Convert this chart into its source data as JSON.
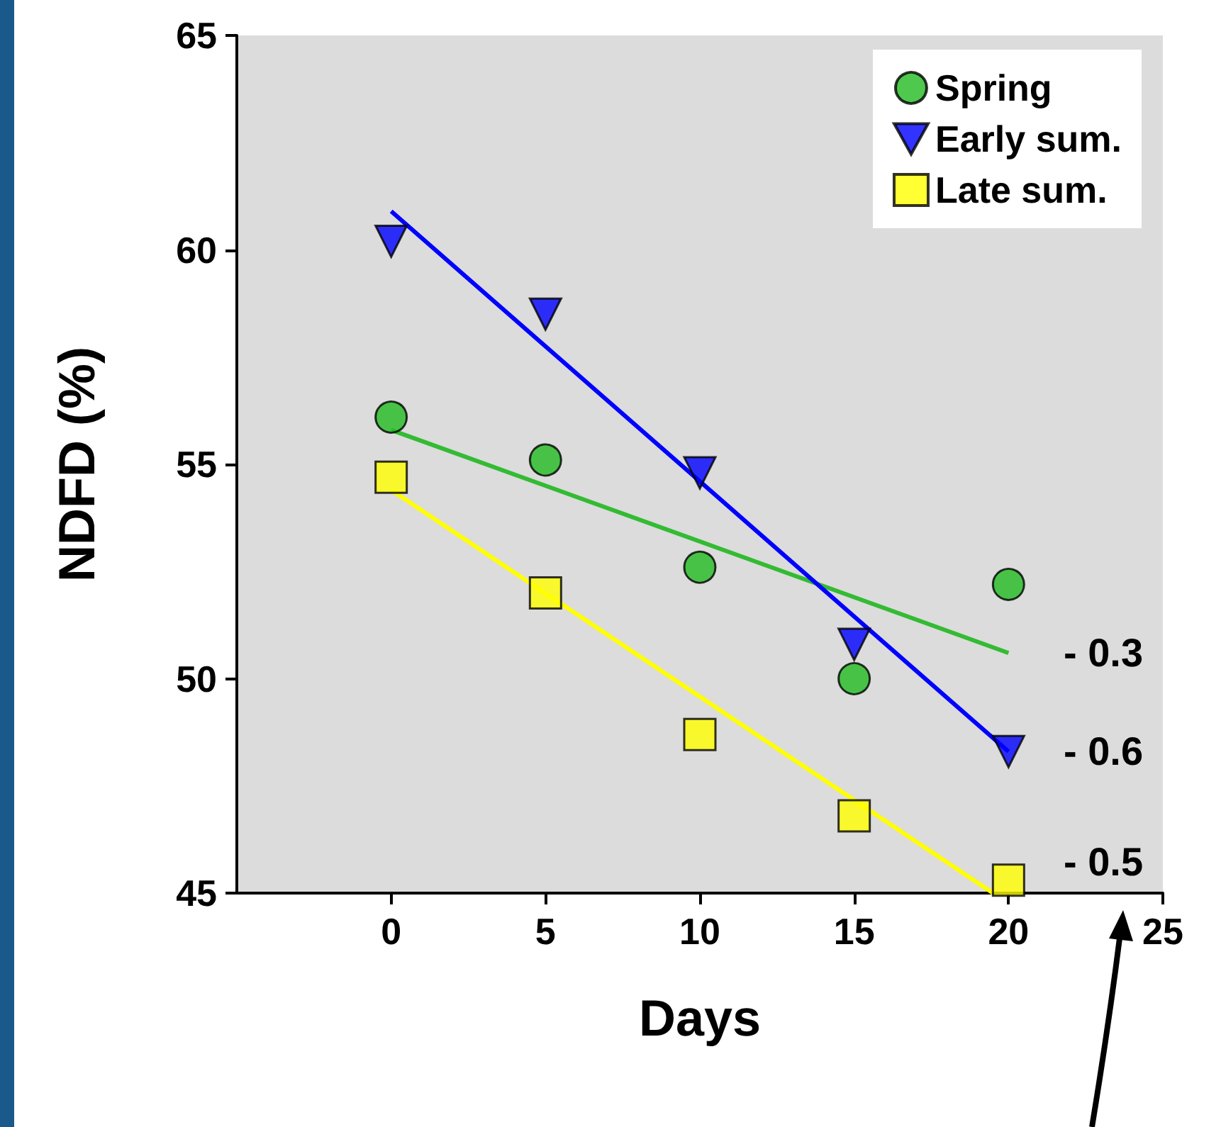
{
  "chart_data": {
    "type": "scatter",
    "xlabel": "Days",
    "ylabel": "NDFD (%)",
    "xlim": [
      -5,
      25
    ],
    "xticks": [
      0,
      5,
      10,
      15,
      20,
      25
    ],
    "ylim": [
      45,
      65
    ],
    "yticks": [
      45,
      50,
      55,
      60,
      65
    ],
    "grid": false,
    "legend": "top right",
    "series": [
      {
        "name": "Spring",
        "color": "#22bb22",
        "marker": "circle",
        "x": [
          0,
          5,
          10,
          15,
          20
        ],
        "values": [
          56.1,
          55.1,
          52.6,
          50.0,
          52.2
        ]
      },
      {
        "name": "Early sum.",
        "color": "#0000ff",
        "marker": "triangle",
        "x": [
          0,
          5,
          10,
          15,
          20
        ],
        "values": [
          60.2,
          58.5,
          54.8,
          50.8,
          48.3
        ]
      },
      {
        "name": "Late sum.",
        "color": "#ffff00",
        "marker": "square",
        "x": [
          0,
          5,
          10,
          15,
          20
        ],
        "values": [
          54.7,
          52.0,
          48.7,
          46.8,
          45.3
        ]
      },
      {
        "type": "line",
        "color": "#33bb33",
        "marker": "none",
        "line_style": "solid",
        "x": [
          0,
          20
        ],
        "values": [
          55.8,
          50.6
        ]
      },
      {
        "type": "line",
        "color": "#0000ff",
        "marker": "none",
        "line_style": "solid",
        "x": [
          0,
          20
        ],
        "values": [
          60.9,
          48.3
        ]
      },
      {
        "type": "line",
        "color": "#ffff00",
        "marker": "none",
        "line_style": "solid",
        "x": [
          0,
          19.5
        ],
        "values": [
          54.4,
          45.0
        ]
      }
    ],
    "annotations": [
      "- 0.3",
      "- 0.6",
      "- 0.5"
    ]
  }
}
